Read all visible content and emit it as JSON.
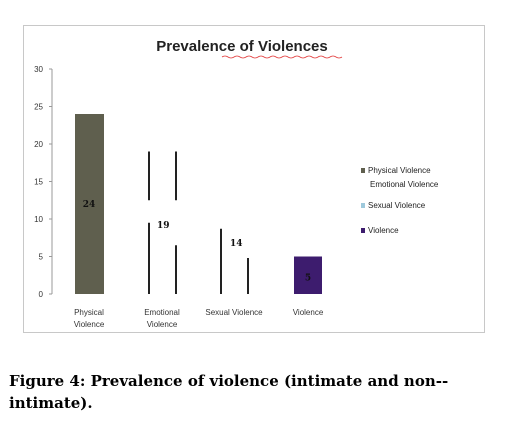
{
  "chart_data": {
    "type": "bar",
    "title": "Prevalence of Violences",
    "categories": [
      "Physical\nViolence",
      "Emotional\nViolence",
      "Sexual Violence",
      "Violence"
    ],
    "values": [
      24,
      19,
      14,
      5
    ],
    "data_labels": [
      "24",
      "19",
      "14",
      "5"
    ],
    "ylim": [
      0,
      30
    ],
    "yticks": [
      0,
      5,
      10,
      15,
      20,
      25,
      30
    ],
    "xlabel": "",
    "ylabel": "",
    "grid": false,
    "legend_position": "right",
    "legend": [
      {
        "label": "Physical Violence",
        "color": "#5f5f4e"
      },
      {
        "label": "Emotional Violence",
        "color": "#222222"
      },
      {
        "label": "Sexual Violence",
        "color": "#9ec9dc"
      },
      {
        "label": "Violence",
        "color": "#3d1c6e"
      }
    ],
    "bar_colors": [
      "#5f5f4e",
      "#222222",
      "#9ec9dc",
      "#3d1c6e"
    ]
  },
  "caption": "Figure 4: Prevalence of violence (intimate and non--intimate)."
}
